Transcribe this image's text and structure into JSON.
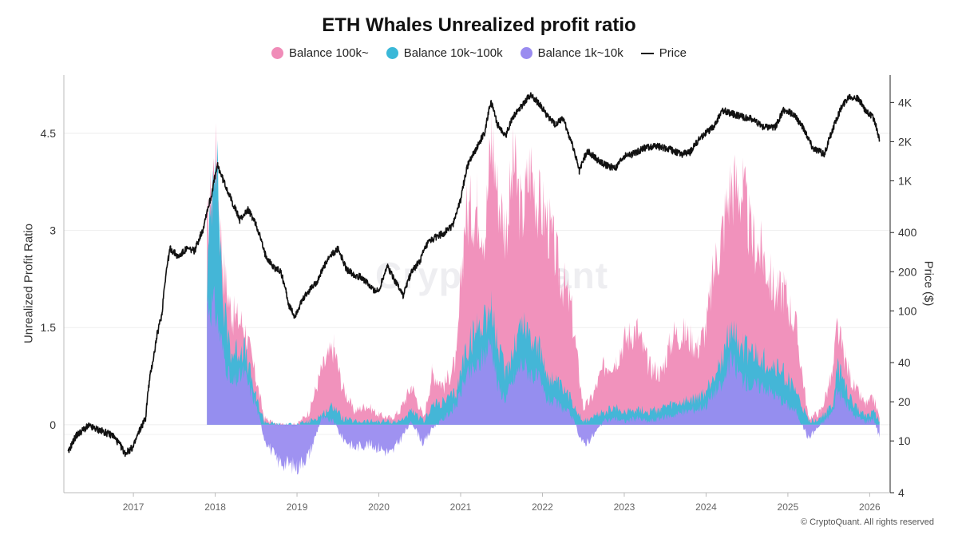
{
  "chart_data": {
    "type": "area",
    "title": "ETH Whales Unrealized profit ratio",
    "ylabel": "Unrealized Profit Ratio",
    "y2label": "Price ($)",
    "ylim": [
      -1.05,
      5.4
    ],
    "yticks": [
      0,
      1.5,
      3,
      4.5
    ],
    "y2scale": "log",
    "y2lim": [
      4,
      6500
    ],
    "y2ticks": [
      4,
      10,
      20,
      40,
      100,
      200,
      400,
      1000,
      2000,
      4000
    ],
    "y2ticklabels": [
      "4",
      "10",
      "20",
      "40",
      "100",
      "200",
      "400",
      "1K",
      "2K",
      "4K"
    ],
    "xlim": [
      2016.15,
      2026.25
    ],
    "xticks": [
      "2017",
      "2018",
      "2019",
      "2020",
      "2021",
      "2022",
      "2023",
      "2024",
      "2025",
      "2026"
    ],
    "grid": "horizontal",
    "legend_position": "top-center",
    "series": [
      {
        "name": "Balance 100k~",
        "color": "#f08cb8",
        "kind": "stacked-area",
        "x": [
          2017.9,
          2018.0,
          2018.1,
          2018.2,
          2018.35,
          2018.5,
          2018.6,
          2018.75,
          2019.0,
          2019.15,
          2019.3,
          2019.45,
          2019.55,
          2019.7,
          2019.85,
          2020.0,
          2020.15,
          2020.25,
          2020.4,
          2020.55,
          2020.65,
          2020.8,
          2020.95,
          2021.05,
          2021.2,
          2021.3,
          2021.38,
          2021.45,
          2021.55,
          2021.65,
          2021.75,
          2021.85,
          2021.95,
          2022.05,
          2022.2,
          2022.35,
          2022.5,
          2022.6,
          2022.75,
          2022.9,
          2023.0,
          2023.15,
          2023.3,
          2023.45,
          2023.6,
          2023.75,
          2023.9,
          2024.0,
          2024.1,
          2024.2,
          2024.3,
          2024.45,
          2024.55,
          2024.7,
          2024.85,
          2024.95,
          2025.1,
          2025.25,
          2025.4,
          2025.55,
          2025.6,
          2025.7,
          2025.8,
          2025.95,
          2026.05,
          2026.12
        ],
        "values": [
          2.9,
          4.2,
          2.4,
          1.7,
          1.55,
          0.7,
          0.1,
          0,
          0,
          0.2,
          0.85,
          1.2,
          0.6,
          0.2,
          0.3,
          0.15,
          0.1,
          0.2,
          0.6,
          0.1,
          0.8,
          0.6,
          1.0,
          3.2,
          3.4,
          3.0,
          4.5,
          3.6,
          3.0,
          4.0,
          3.2,
          4.0,
          3.4,
          3.2,
          2.4,
          1.8,
          0.25,
          0.4,
          0.9,
          1.0,
          1.3,
          1.5,
          0.9,
          0.8,
          1.4,
          1.4,
          1.2,
          1.5,
          2.4,
          3.0,
          3.7,
          3.6,
          2.9,
          2.6,
          2.0,
          2.1,
          1.5,
          0.1,
          0.2,
          0.8,
          1.5,
          1.0,
          0.6,
          0.3,
          0.4,
          0.1
        ]
      },
      {
        "name": "Balance 10k~100k",
        "color": "#3ab8d8",
        "kind": "stacked-area",
        "x": [
          2017.9,
          2018.0,
          2018.1,
          2018.2,
          2018.35,
          2018.5,
          2018.6,
          2018.75,
          2019.0,
          2019.15,
          2019.3,
          2019.45,
          2019.55,
          2019.7,
          2019.85,
          2020.0,
          2020.15,
          2020.25,
          2020.4,
          2020.55,
          2020.65,
          2020.8,
          2020.95,
          2021.05,
          2021.2,
          2021.3,
          2021.38,
          2021.45,
          2021.55,
          2021.65,
          2021.75,
          2021.85,
          2021.95,
          2022.05,
          2022.2,
          2022.35,
          2022.5,
          2022.6,
          2022.75,
          2022.9,
          2023.0,
          2023.15,
          2023.3,
          2023.45,
          2023.6,
          2023.75,
          2023.9,
          2024.0,
          2024.1,
          2024.2,
          2024.3,
          2024.45,
          2024.55,
          2024.7,
          2024.85,
          2024.95,
          2025.1,
          2025.25,
          2025.4,
          2025.55,
          2025.6,
          2025.7,
          2025.8,
          2025.95,
          2026.05,
          2026.12
        ],
        "values": [
          2.2,
          4.6,
          1.8,
          1.1,
          1.2,
          0.4,
          0.05,
          0,
          0,
          0.05,
          0.15,
          0.3,
          0.1,
          0.05,
          0.05,
          0.05,
          0.05,
          0.05,
          0.2,
          0.05,
          0.3,
          0.35,
          0.5,
          1.1,
          1.5,
          1.7,
          1.8,
          1.2,
          0.8,
          1.2,
          1.6,
          1.4,
          1.2,
          0.8,
          0.6,
          0.4,
          0.05,
          0.1,
          0.2,
          0.25,
          0.2,
          0.25,
          0.2,
          0.25,
          0.3,
          0.35,
          0.4,
          0.5,
          0.8,
          1.0,
          1.5,
          1.2,
          1.1,
          1.0,
          0.9,
          0.8,
          0.5,
          0.05,
          0.1,
          0.3,
          0.9,
          0.6,
          0.3,
          0.15,
          0.2,
          0.05
        ]
      },
      {
        "name": "Balance 1k~10k",
        "color": "#9a8cf0",
        "kind": "stacked-area",
        "x": [
          2017.9,
          2018.0,
          2018.1,
          2018.2,
          2018.35,
          2018.5,
          2018.6,
          2018.75,
          2019.0,
          2019.15,
          2019.3,
          2019.45,
          2019.55,
          2019.7,
          2019.85,
          2020.0,
          2020.15,
          2020.25,
          2020.4,
          2020.55,
          2020.65,
          2020.8,
          2020.95,
          2021.05,
          2021.2,
          2021.3,
          2021.38,
          2021.45,
          2021.55,
          2021.65,
          2021.75,
          2021.85,
          2021.95,
          2022.05,
          2022.2,
          2022.35,
          2022.5,
          2022.6,
          2022.75,
          2022.9,
          2023.0,
          2023.15,
          2023.3,
          2023.45,
          2023.6,
          2023.75,
          2023.9,
          2024.0,
          2024.1,
          2024.2,
          2024.3,
          2024.45,
          2024.55,
          2024.7,
          2024.85,
          2024.95,
          2025.1,
          2025.25,
          2025.4,
          2025.55,
          2025.6,
          2025.7,
          2025.8,
          2025.95,
          2026.05,
          2026.12
        ],
        "values": [
          1.9,
          1.8,
          1.1,
          0.6,
          0.8,
          0.3,
          -0.2,
          -0.55,
          -0.65,
          -0.45,
          0.1,
          0.05,
          -0.2,
          -0.35,
          -0.3,
          -0.35,
          -0.45,
          -0.25,
          0.05,
          -0.3,
          -0.05,
          0.1,
          0.3,
          0.7,
          0.9,
          1.1,
          1.3,
          0.6,
          0.4,
          0.7,
          0.95,
          0.8,
          0.7,
          0.4,
          0.3,
          0.15,
          -0.3,
          -0.2,
          0.05,
          0.1,
          0.05,
          0.1,
          0.05,
          0.1,
          0.15,
          0.2,
          0.25,
          0.3,
          0.5,
          0.6,
          1.0,
          0.7,
          0.6,
          0.6,
          0.45,
          0.35,
          0.2,
          -0.2,
          0.0,
          0.2,
          0.55,
          0.35,
          0.15,
          0.05,
          0.1,
          -0.2
        ]
      },
      {
        "name": "Price",
        "color": "#111111",
        "kind": "line",
        "axis": "right",
        "x": [
          2016.2,
          2016.3,
          2016.45,
          2016.6,
          2016.75,
          2016.9,
          2017.0,
          2017.15,
          2017.25,
          2017.35,
          2017.45,
          2017.55,
          2017.65,
          2017.75,
          2017.85,
          2017.95,
          2018.03,
          2018.1,
          2018.2,
          2018.3,
          2018.4,
          2018.5,
          2018.6,
          2018.7,
          2018.8,
          2018.9,
          2018.97,
          2019.1,
          2019.25,
          2019.4,
          2019.5,
          2019.6,
          2019.7,
          2019.8,
          2019.9,
          2020.0,
          2020.1,
          2020.2,
          2020.3,
          2020.4,
          2020.5,
          2020.6,
          2020.7,
          2020.8,
          2020.9,
          2021.0,
          2021.1,
          2021.2,
          2021.3,
          2021.37,
          2021.45,
          2021.55,
          2021.65,
          2021.75,
          2021.85,
          2021.95,
          2022.05,
          2022.15,
          2022.25,
          2022.35,
          2022.45,
          2022.55,
          2022.7,
          2022.8,
          2022.9,
          2023.0,
          2023.1,
          2023.25,
          2023.4,
          2023.55,
          2023.7,
          2023.8,
          2023.95,
          2024.1,
          2024.2,
          2024.3,
          2024.45,
          2024.55,
          2024.7,
          2024.85,
          2024.95,
          2025.05,
          2025.15,
          2025.3,
          2025.45,
          2025.55,
          2025.65,
          2025.75,
          2025.85,
          2025.95,
          2026.05,
          2026.12
        ],
        "values": [
          8,
          11,
          13,
          12,
          11,
          8,
          9,
          15,
          45,
          95,
          300,
          260,
          300,
          290,
          420,
          750,
          1300,
          1000,
          700,
          500,
          600,
          460,
          280,
          220,
          200,
          110,
          90,
          130,
          170,
          260,
          300,
          210,
          190,
          180,
          150,
          140,
          220,
          170,
          130,
          200,
          240,
          330,
          370,
          400,
          450,
          700,
          1400,
          1800,
          2400,
          4000,
          2700,
          2200,
          3200,
          3800,
          4600,
          4000,
          3200,
          2700,
          3000,
          2000,
          1200,
          1700,
          1400,
          1300,
          1250,
          1550,
          1600,
          1800,
          1850,
          1750,
          1600,
          1650,
          2200,
          2600,
          3500,
          3300,
          3100,
          3000,
          2600,
          2600,
          3500,
          3300,
          2800,
          1800,
          1600,
          2500,
          3600,
          4500,
          4300,
          3500,
          3000,
          2000
        ]
      }
    ],
    "watermark": "CryptoQuant",
    "copyright": "© CryptoQuant. All rights reserved"
  }
}
